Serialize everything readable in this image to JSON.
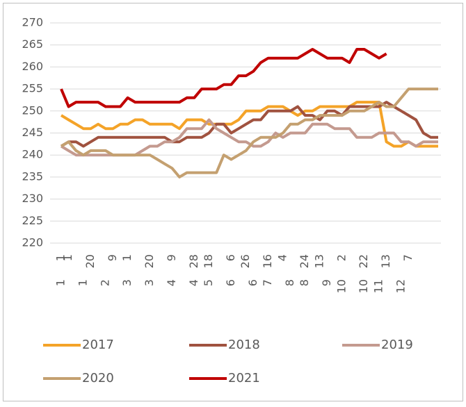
{
  "chart_data": {
    "type": "line",
    "x_days": [
      "1",
      "1",
      null,
      null,
      "20",
      null,
      null,
      "9",
      null,
      "1",
      null,
      null,
      "20",
      null,
      null,
      "9",
      null,
      null,
      "28",
      null,
      "18",
      null,
      null,
      "6",
      null,
      "26",
      null,
      null,
      "16",
      null,
      "4",
      null,
      null,
      "24",
      null,
      "13",
      null,
      null,
      "2",
      null,
      null,
      "22",
      null,
      null,
      "13",
      null,
      null,
      "7",
      null,
      null,
      null,
      null
    ],
    "x_months": [
      "1",
      null,
      null,
      "1",
      null,
      null,
      "2",
      null,
      null,
      "3",
      null,
      null,
      "3",
      null,
      null,
      "4",
      null,
      null,
      "4",
      null,
      "5",
      null,
      null,
      "6",
      null,
      null,
      "6",
      null,
      "7",
      null,
      null,
      "8",
      null,
      "8",
      null,
      null,
      "9",
      null,
      "10",
      null,
      null,
      "10",
      null,
      "11",
      null,
      null,
      "12",
      null,
      null,
      null,
      null,
      null
    ],
    "ylim": [
      220,
      270
    ],
    "yticks": [
      220,
      225,
      230,
      235,
      240,
      245,
      250,
      255,
      260,
      265,
      270
    ],
    "grid": true,
    "series": [
      {
        "name": "2017",
        "color": "#f4a328",
        "values": [
          249,
          248,
          247,
          246,
          246,
          247,
          246,
          246,
          247,
          247,
          248,
          248,
          247,
          247,
          247,
          247,
          246,
          248,
          248,
          248,
          247,
          247,
          247,
          247,
          248,
          250,
          250,
          250,
          251,
          251,
          251,
          250,
          249,
          250,
          250,
          251,
          251,
          251,
          251,
          251,
          252,
          252,
          252,
          252,
          243,
          242,
          242,
          243,
          242,
          242,
          242,
          242
        ]
      },
      {
        "name": "2018",
        "color": "#a0523f",
        "values": [
          242,
          243,
          243,
          242,
          243,
          244,
          244,
          244,
          244,
          244,
          244,
          244,
          244,
          244,
          244,
          243,
          243,
          244,
          244,
          244,
          245,
          247,
          247,
          245,
          246,
          247,
          248,
          248,
          250,
          250,
          250,
          250,
          251,
          249,
          249,
          248,
          250,
          250,
          249,
          251,
          251,
          251,
          251,
          251,
          252,
          251,
          250,
          249,
          248,
          245,
          244,
          244
        ]
      },
      {
        "name": "2019",
        "color": "#c49a8f",
        "values": [
          242,
          241,
          240,
          240,
          240,
          240,
          240,
          240,
          240,
          240,
          240,
          241,
          242,
          242,
          243,
          243,
          244,
          246,
          246,
          246,
          248,
          246,
          245,
          244,
          243,
          243,
          242,
          242,
          243,
          245,
          244,
          245,
          245,
          245,
          247,
          247,
          247,
          246,
          246,
          246,
          244,
          244,
          244,
          245,
          245,
          245,
          243,
          243,
          242,
          243,
          243,
          243
        ]
      },
      {
        "name": "2020",
        "color": "#c4a070",
        "values": [
          242,
          243,
          241,
          240,
          241,
          241,
          241,
          240,
          240,
          240,
          240,
          240,
          240,
          239,
          238,
          237,
          235,
          236,
          236,
          236,
          236,
          236,
          240,
          239,
          240,
          241,
          243,
          244,
          244,
          244,
          245,
          247,
          247,
          248,
          248,
          249,
          249,
          249,
          249,
          250,
          250,
          250,
          251,
          252,
          251,
          251,
          253,
          255,
          255,
          255,
          255,
          255
        ]
      },
      {
        "name": "2021",
        "color": "#c00000",
        "values": [
          255,
          251,
          252,
          252,
          252,
          252,
          251,
          251,
          251,
          253,
          252,
          252,
          252,
          252,
          252,
          252,
          252,
          253,
          253,
          255,
          255,
          255,
          256,
          256,
          258,
          258,
          259,
          261,
          262,
          262,
          262,
          262,
          262,
          263,
          264,
          263,
          262,
          262,
          262,
          261,
          264,
          264,
          263,
          262,
          263,
          null,
          null,
          null,
          null,
          null,
          null,
          null
        ]
      }
    ]
  }
}
